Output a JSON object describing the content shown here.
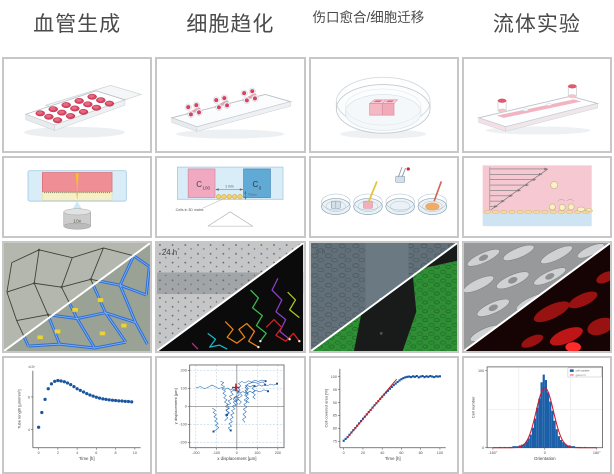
{
  "headers": [
    {
      "label": "血管生成"
    },
    {
      "label": "细胞趋化"
    },
    {
      "label": "伤口愈合/细胞迁移"
    },
    {
      "label": "流体实验"
    }
  ],
  "schematics": {
    "angiogenesis": {
      "objective_label": "10x"
    },
    "chemotaxis": {
      "chamber_left": "C",
      "chamber_left_sub": "100",
      "chamber_right": "C",
      "chamber_right_sub": "0",
      "width_label": "1 mm",
      "height_label": "70 µm",
      "cells_label": "Cells in 3D matrix"
    }
  },
  "micrographs": {
    "chemotaxis_time_label": "24 h",
    "wound_time_label": "0 h"
  },
  "colors": {
    "plot_blue": "#1a56a0",
    "fit_red": "#d01818",
    "media_pink": "#ef8e95",
    "well_red": "#d8415f"
  },
  "chart_data": [
    {
      "type": "scatter",
      "xlabel": "Time [h]",
      "ylabel": "Tube length [µm/mm²]",
      "y_multiplier": "x10³",
      "xlim": [
        -0.6,
        10.6
      ],
      "ylim": [
        2.9,
        7.6
      ],
      "xticks": [
        0,
        2,
        4,
        6,
        8,
        10
      ],
      "yticks": [
        4,
        6
      ],
      "frame": "LB",
      "color": "#1a56a0",
      "x": [
        0,
        0.33,
        0.67,
        1,
        1.33,
        1.67,
        2,
        2.33,
        2.67,
        3,
        3.33,
        3.67,
        4,
        4.33,
        4.67,
        5,
        5.33,
        5.67,
        6,
        6.33,
        6.67,
        7,
        7.33,
        7.67,
        8,
        8.33,
        8.67,
        9,
        9.33,
        9.67
      ],
      "y": [
        4.15,
        5.05,
        5.85,
        6.5,
        6.8,
        6.95,
        7.0,
        6.97,
        6.93,
        6.85,
        6.75,
        6.63,
        6.5,
        6.4,
        6.3,
        6.2,
        6.12,
        6.05,
        5.98,
        5.93,
        5.88,
        5.85,
        5.82,
        5.8,
        5.78,
        5.76,
        5.75,
        5.73,
        5.72,
        5.7
      ]
    },
    {
      "type": "tracks",
      "xlabel": "x displacement [µm]",
      "ylabel": "y displacement [µm]",
      "xlim": [
        -230,
        230
      ],
      "ylim": [
        -230,
        230
      ],
      "xticks": [
        -200,
        -100,
        0,
        100,
        200
      ],
      "yticks": [
        -200,
        -100,
        0,
        100,
        200
      ],
      "frame": "box",
      "grid": "dashed",
      "color": "#2a6db5",
      "com_color": "#d01818",
      "center_of_mass": [
        -5,
        105
      ],
      "tracks": [
        [
          [
            -200,
            102
          ],
          [
            -178,
            110
          ],
          [
            -158,
            98
          ],
          [
            -140,
            106
          ],
          [
            -122,
            118
          ],
          [
            -104,
            108
          ],
          [
            -88,
            98
          ],
          [
            -72,
            106
          ],
          [
            -58,
            94
          ],
          [
            -44,
            102
          ],
          [
            -32,
            90
          ],
          [
            -20,
            98
          ],
          [
            -10,
            86
          ],
          [
            0,
            94
          ],
          [
            8,
            82
          ]
        ],
        [
          [
            10,
            10
          ],
          [
            22,
            24
          ],
          [
            8,
            38
          ],
          [
            -6,
            26
          ],
          [
            -18,
            40
          ],
          [
            -4,
            54
          ],
          [
            12,
            48
          ],
          [
            26,
            60
          ],
          [
            14,
            74
          ],
          [
            30,
            82
          ],
          [
            48,
            70
          ],
          [
            62,
            84
          ],
          [
            78,
            76
          ],
          [
            92,
            88
          ],
          [
            112,
            80
          ],
          [
            132,
            92
          ],
          [
            152,
            84
          ]
        ],
        [
          [
            -60,
            -80
          ],
          [
            -44,
            -64
          ],
          [
            -58,
            -48
          ],
          [
            -40,
            -36
          ],
          [
            -54,
            -20
          ],
          [
            -36,
            -10
          ],
          [
            -48,
            6
          ],
          [
            -30,
            16
          ],
          [
            -42,
            30
          ],
          [
            -24,
            42
          ],
          [
            -36,
            56
          ],
          [
            -18,
            66
          ],
          [
            -30,
            80
          ],
          [
            -12,
            92
          ],
          [
            -4,
            104
          ]
        ],
        [
          [
            40,
            -90
          ],
          [
            28,
            -72
          ],
          [
            44,
            -60
          ],
          [
            30,
            -44
          ],
          [
            46,
            -30
          ],
          [
            32,
            -16
          ],
          [
            48,
            -4
          ],
          [
            34,
            10
          ],
          [
            50,
            22
          ],
          [
            36,
            36
          ],
          [
            52,
            48
          ],
          [
            38,
            62
          ],
          [
            54,
            74
          ],
          [
            40,
            88
          ],
          [
            56,
            100
          ],
          [
            42,
            114
          ],
          [
            58,
            126
          ],
          [
            80,
            134
          ],
          [
            104,
            128
          ],
          [
            128,
            136
          ],
          [
            138,
            120
          ]
        ],
        [
          [
            -10,
            0
          ],
          [
            4,
            14
          ],
          [
            -8,
            28
          ],
          [
            8,
            40
          ],
          [
            -4,
            52
          ],
          [
            12,
            64
          ],
          [
            0,
            78
          ],
          [
            16,
            90
          ],
          [
            4,
            102
          ],
          [
            20,
            114
          ],
          [
            8,
            126
          ],
          [
            24,
            138
          ],
          [
            40,
            130
          ],
          [
            56,
            142
          ],
          [
            72,
            134
          ],
          [
            88,
            146
          ],
          [
            104,
            138
          ],
          [
            122,
            146
          ],
          [
            140,
            140
          ]
        ],
        [
          [
            0,
            60
          ],
          [
            -14,
            48
          ],
          [
            -2,
            34
          ],
          [
            -18,
            24
          ],
          [
            -6,
            10
          ],
          [
            -22,
            0
          ],
          [
            -10,
            -14
          ],
          [
            -26,
            -24
          ],
          [
            -14,
            -38
          ],
          [
            -30,
            -48
          ],
          [
            -18,
            -62
          ],
          [
            -34,
            -72
          ],
          [
            -22,
            -86
          ],
          [
            -38,
            -96
          ],
          [
            -26,
            -110
          ],
          [
            -42,
            -120
          ],
          [
            -30,
            -134
          ]
        ],
        [
          [
            60,
            20
          ],
          [
            46,
            32
          ],
          [
            58,
            44
          ],
          [
            44,
            56
          ],
          [
            56,
            68
          ],
          [
            42,
            80
          ],
          [
            54,
            92
          ],
          [
            40,
            104
          ],
          [
            52,
            116
          ],
          [
            66,
            108
          ],
          [
            80,
            118
          ],
          [
            94,
            110
          ],
          [
            108,
            120
          ],
          [
            122,
            112
          ],
          [
            136,
            122
          ],
          [
            150,
            114
          ],
          [
            164,
            124
          ],
          [
            180,
            118
          ],
          [
            196,
            126
          ]
        ],
        [
          [
            -80,
            140
          ],
          [
            -64,
            132
          ],
          [
            -76,
            120
          ],
          [
            -60,
            108
          ],
          [
            -72,
            96
          ],
          [
            -56,
            84
          ],
          [
            -68,
            72
          ],
          [
            -52,
            60
          ],
          [
            -64,
            48
          ],
          [
            -48,
            36
          ],
          [
            -60,
            24
          ],
          [
            -44,
            12
          ],
          [
            -56,
            0
          ],
          [
            -40,
            -12
          ],
          [
            -52,
            -24
          ],
          [
            -36,
            -36
          ],
          [
            -48,
            -48
          ]
        ],
        [
          [
            90,
            40
          ],
          [
            78,
            52
          ],
          [
            90,
            64
          ],
          [
            76,
            76
          ],
          [
            88,
            88
          ],
          [
            74,
            100
          ],
          [
            86,
            112
          ]
        ],
        [
          [
            -120,
            -10
          ],
          [
            -104,
            -22
          ],
          [
            -116,
            -34
          ],
          [
            -100,
            -46
          ],
          [
            -112,
            -58
          ],
          [
            -96,
            -70
          ],
          [
            -108,
            -82
          ],
          [
            -92,
            -94
          ],
          [
            -104,
            -106
          ],
          [
            -88,
            -118
          ],
          [
            -100,
            -130
          ],
          [
            -114,
            -140
          ]
        ]
      ]
    },
    {
      "type": "scatter-fit",
      "xlabel": "Time [h]",
      "ylabel": "Cell covered area [%]",
      "xlim": [
        -4,
        106
      ],
      "ylim": [
        72.5,
        103
      ],
      "xticks": [
        0,
        20,
        40,
        60,
        80,
        100
      ],
      "yticks": [
        75,
        80,
        85,
        90,
        95,
        100
      ],
      "frame": "LB",
      "color": "#1a56a0",
      "fit_color": "#d01818",
      "fit": {
        "x1": 4,
        "y1": 76.5,
        "x2": 55,
        "y2": 99
      },
      "x": [
        0,
        2,
        4,
        6,
        8,
        10,
        12,
        14,
        16,
        18,
        20,
        22,
        24,
        26,
        28,
        30,
        32,
        34,
        36,
        38,
        40,
        42,
        44,
        46,
        48,
        50,
        52,
        54,
        56,
        58,
        60,
        62,
        64,
        66,
        68,
        70,
        72,
        74,
        76,
        78,
        80,
        82,
        84,
        86,
        88,
        90,
        92,
        94,
        96,
        98,
        100
      ],
      "y": [
        75.2,
        75.9,
        76.6,
        77.5,
        78.4,
        79.3,
        80.1,
        81.0,
        81.9,
        82.8,
        83.7,
        84.5,
        85.4,
        86.3,
        87.1,
        88.0,
        88.9,
        89.7,
        90.5,
        91.4,
        92.2,
        93.0,
        93.8,
        94.5,
        95.3,
        96.0,
        96.7,
        97.3,
        97.9,
        98.5,
        99.0,
        99.4,
        99.7,
        99.9,
        100.0,
        99.8,
        100.1,
        99.9,
        100.2,
        99.7,
        100.0,
        100.2,
        99.8,
        100.1,
        99.9,
        100.2,
        100.0,
        99.8,
        100.1,
        100.0,
        100.1
      ]
    },
    {
      "type": "histogram",
      "xlabel": "Orientation",
      "ylabel": "Cell number",
      "xlim": [
        -200,
        200
      ],
      "ylim": [
        0,
        105
      ],
      "xticks": [
        -180,
        0,
        180
      ],
      "xtick_labels": [
        "-180°",
        "0",
        "180°"
      ],
      "yticks": [
        0,
        100
      ],
      "frame": "box",
      "color": "#1a5fa8",
      "fit_color": "#d01830",
      "bin_start": -180,
      "bin_width": 7.5,
      "values": [
        0,
        0,
        0,
        1,
        0,
        1,
        0,
        1,
        1,
        2,
        2,
        2,
        3,
        4,
        5,
        8,
        12,
        17,
        26,
        38,
        52,
        64,
        85,
        95,
        88,
        72,
        60,
        48,
        35,
        24,
        15,
        10,
        7,
        5,
        3,
        3,
        2,
        2,
        1,
        1,
        1,
        0,
        1,
        0,
        0,
        0,
        0,
        0
      ],
      "gauss": {
        "amplitude": 78,
        "center": 0,
        "sigma": 30
      },
      "legend": [
        {
          "label": "cell number",
          "type": "bar"
        },
        {
          "label": "gauss fit",
          "type": "line"
        }
      ]
    }
  ]
}
